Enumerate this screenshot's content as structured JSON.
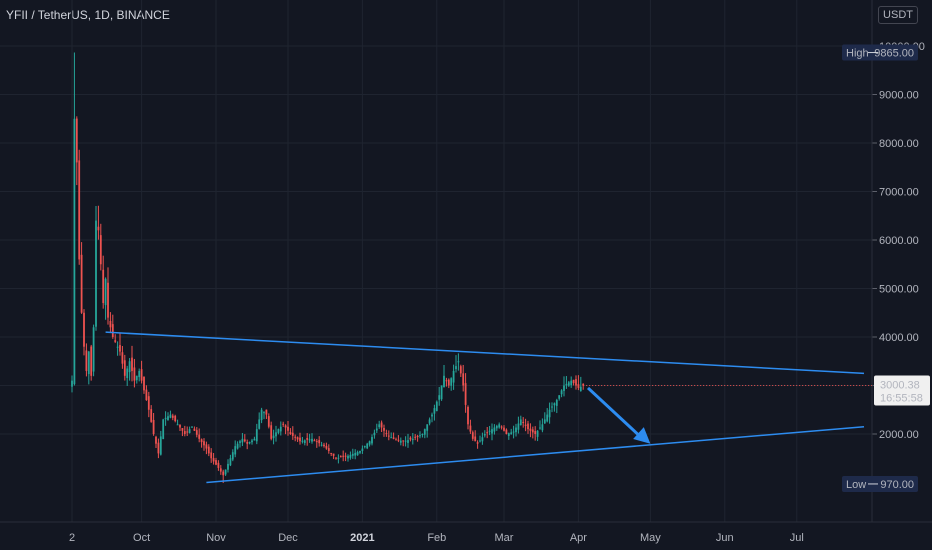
{
  "header": {
    "symbol": "YFII / TetherUS, 1D, BINANCE",
    "currency": "USDT"
  },
  "colors": {
    "background": "#131722",
    "grid": "#1f2430",
    "up": "#26a69a",
    "down": "#ef5350",
    "trendline": "#2d8cf0",
    "arrow": "#2d8cf0",
    "axis_text": "#b2b5be"
  },
  "chart_data": {
    "type": "candlestick",
    "title": "",
    "xlabel": "",
    "ylabel": "",
    "ylim": [
      600,
      10000
    ],
    "y_ticks": [
      2000,
      3000,
      4000,
      5000,
      6000,
      7000,
      8000,
      9000,
      10000
    ],
    "y_tick_labels": [
      "2000.00",
      "3000.00",
      "4000.00",
      "5000.00",
      "6000.00",
      "7000.00",
      "8000.00",
      "9000.00",
      "10000.00"
    ],
    "x_ticks": [
      {
        "label": "2",
        "day": 0,
        "bold": false
      },
      {
        "label": "Oct",
        "day": 29,
        "bold": false
      },
      {
        "label": "Nov",
        "day": 60,
        "bold": false
      },
      {
        "label": "Dec",
        "day": 90,
        "bold": false
      },
      {
        "label": "2021",
        "day": 121,
        "bold": true
      },
      {
        "label": "Feb",
        "day": 152,
        "bold": false
      },
      {
        "label": "Mar",
        "day": 180,
        "bold": false
      },
      {
        "label": "Apr",
        "day": 211,
        "bold": false
      },
      {
        "label": "May",
        "day": 241,
        "bold": false
      },
      {
        "label": "Jun",
        "day": 272,
        "bold": false
      },
      {
        "label": "Jul",
        "day": 302,
        "bold": false
      }
    ],
    "grid": true,
    "price_guide": [
      {
        "day": 0,
        "price": 3100
      },
      {
        "day": 1,
        "price": 8500
      },
      {
        "day": 2,
        "price": 7600
      },
      {
        "day": 3,
        "price": 5600
      },
      {
        "day": 4,
        "price": 4500
      },
      {
        "day": 5,
        "price": 3800
      },
      {
        "day": 6,
        "price": 3300
      },
      {
        "day": 7,
        "price": 3700
      },
      {
        "day": 8,
        "price": 3200
      },
      {
        "day": 9,
        "price": 4200
      },
      {
        "day": 10,
        "price": 6400
      },
      {
        "day": 11,
        "price": 6200
      },
      {
        "day": 12,
        "price": 5500
      },
      {
        "day": 13,
        "price": 4700
      },
      {
        "day": 14,
        "price": 5200
      },
      {
        "day": 15,
        "price": 4400
      },
      {
        "day": 17,
        "price": 4000
      },
      {
        "day": 20,
        "price": 3700
      },
      {
        "day": 22,
        "price": 3200
      },
      {
        "day": 24,
        "price": 3500
      },
      {
        "day": 26,
        "price": 3100
      },
      {
        "day": 28,
        "price": 3300
      },
      {
        "day": 30,
        "price": 2900
      },
      {
        "day": 32,
        "price": 2500
      },
      {
        "day": 34,
        "price": 2000
      },
      {
        "day": 36,
        "price": 1600
      },
      {
        "day": 38,
        "price": 2300
      },
      {
        "day": 41,
        "price": 2400
      },
      {
        "day": 44,
        "price": 2200
      },
      {
        "day": 47,
        "price": 2000
      },
      {
        "day": 50,
        "price": 2150
      },
      {
        "day": 53,
        "price": 1900
      },
      {
        "day": 56,
        "price": 1700
      },
      {
        "day": 58,
        "price": 1500
      },
      {
        "day": 61,
        "price": 1300
      },
      {
        "day": 63,
        "price": 1150
      },
      {
        "day": 66,
        "price": 1500
      },
      {
        "day": 68,
        "price": 1750
      },
      {
        "day": 71,
        "price": 1900
      },
      {
        "day": 73,
        "price": 1800
      },
      {
        "day": 76,
        "price": 1900
      },
      {
        "day": 79,
        "price": 2500
      },
      {
        "day": 81,
        "price": 2400
      },
      {
        "day": 83,
        "price": 1900
      },
      {
        "day": 86,
        "price": 2100
      },
      {
        "day": 88,
        "price": 2200
      },
      {
        "day": 91,
        "price": 2000
      },
      {
        "day": 95,
        "price": 1850
      },
      {
        "day": 100,
        "price": 1900
      },
      {
        "day": 105,
        "price": 1750
      },
      {
        "day": 110,
        "price": 1500
      },
      {
        "day": 115,
        "price": 1550
      },
      {
        "day": 120,
        "price": 1650
      },
      {
        "day": 124,
        "price": 1850
      },
      {
        "day": 128,
        "price": 2200
      },
      {
        "day": 131,
        "price": 2000
      },
      {
        "day": 134,
        "price": 1900
      },
      {
        "day": 138,
        "price": 1850
      },
      {
        "day": 142,
        "price": 1900
      },
      {
        "day": 146,
        "price": 2000
      },
      {
        "day": 150,
        "price": 2400
      },
      {
        "day": 153,
        "price": 2800
      },
      {
        "day": 155,
        "price": 3200
      },
      {
        "day": 157,
        "price": 3000
      },
      {
        "day": 159,
        "price": 3300
      },
      {
        "day": 161,
        "price": 3500
      },
      {
        "day": 163,
        "price": 3000
      },
      {
        "day": 165,
        "price": 2200
      },
      {
        "day": 167,
        "price": 1900
      },
      {
        "day": 169,
        "price": 1800
      },
      {
        "day": 172,
        "price": 2000
      },
      {
        "day": 175,
        "price": 2100
      },
      {
        "day": 178,
        "price": 2200
      },
      {
        "day": 181,
        "price": 2000
      },
      {
        "day": 184,
        "price": 2050
      },
      {
        "day": 187,
        "price": 2300
      },
      {
        "day": 190,
        "price": 2100
      },
      {
        "day": 193,
        "price": 2000
      },
      {
        "day": 196,
        "price": 2200
      },
      {
        "day": 199,
        "price": 2500
      },
      {
        "day": 202,
        "price": 2700
      },
      {
        "day": 205,
        "price": 3000
      },
      {
        "day": 208,
        "price": 3100
      },
      {
        "day": 211,
        "price": 2950
      },
      {
        "day": 213,
        "price": 3000
      }
    ],
    "trendlines": [
      {
        "name": "upper",
        "from": {
          "day": 14,
          "price": 4100
        },
        "to": {
          "day": 330,
          "price": 3250
        }
      },
      {
        "name": "lower",
        "from": {
          "day": 56,
          "price": 1000
        },
        "to": {
          "day": 330,
          "price": 2150
        }
      }
    ],
    "arrow": {
      "from": {
        "day": 215,
        "price": 2950
      },
      "to": {
        "day": 241,
        "price": 1800
      }
    },
    "markers": {
      "high": {
        "label": "High",
        "value": "9865.00",
        "price": 9865
      },
      "low": {
        "label": "Low",
        "value": "970.00",
        "price": 970
      },
      "last": {
        "value": "3000.38",
        "countdown": "16:55:58",
        "price": 3000.38
      }
    }
  }
}
